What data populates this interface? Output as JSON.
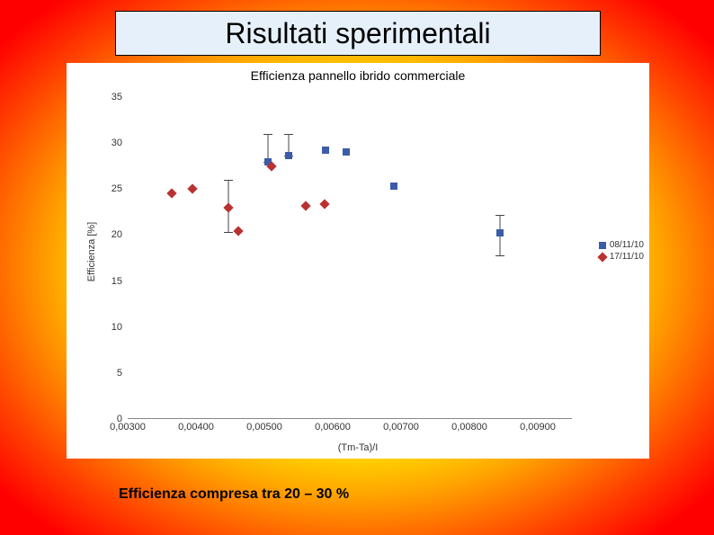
{
  "slide": {
    "title": "Risultati sperimentali",
    "caption": "Efficienza compresa tra 20 – 30 %"
  },
  "chart": {
    "type": "scatter",
    "title": "Efficienza pannello ibrido commerciale",
    "xlabel": "(Tm-Ta)/I",
    "ylabel": "Efficienza [%]",
    "background_color": "#ffffff",
    "grid_color": "#e0e0e0",
    "x_ticks": [
      "0,00300",
      "0,00400",
      "0,00500",
      "0,00600",
      "0,00700",
      "0,00800",
      "0,00900"
    ],
    "x_tick_values": [
      0.003,
      0.004,
      0.005,
      0.006,
      0.007,
      0.008,
      0.009
    ],
    "xlim": [
      0.003,
      0.0095
    ],
    "y_ticks": [
      "0",
      "5",
      "10",
      "15",
      "20",
      "25",
      "30",
      "35"
    ],
    "y_tick_values": [
      0,
      5,
      10,
      15,
      20,
      25,
      30,
      35
    ],
    "ylim": [
      0,
      35
    ],
    "title_fontsize": 14,
    "label_fontsize": 11,
    "tick_fontsize": 11,
    "legend": {
      "position": "right-middle",
      "entries": [
        {
          "label": "08/11/10",
          "marker": "square",
          "color": "#3b5ca8"
        },
        {
          "label": "17/11/10",
          "marker": "diamond",
          "color": "#b83232"
        }
      ]
    },
    "series": [
      {
        "name": "08/11/10",
        "marker": "square",
        "color": "#3b5ca8",
        "marker_size": 8,
        "points": [
          {
            "x": 0.00505,
            "y": 28.0,
            "err_top": 31.0,
            "err_bot": 28.0
          },
          {
            "x": 0.00535,
            "y": 28.6,
            "err_top": 31.0,
            "err_bot": 28.6
          },
          {
            "x": 0.0059,
            "y": 29.2
          },
          {
            "x": 0.0062,
            "y": 29.0
          },
          {
            "x": 0.0069,
            "y": 25.3
          },
          {
            "x": 0.00845,
            "y": 20.2,
            "err_top": 22.2,
            "err_bot": 17.8
          }
        ]
      },
      {
        "name": "17/11/10",
        "marker": "diamond",
        "color": "#b83232",
        "marker_size": 8,
        "points": [
          {
            "x": 0.00365,
            "y": 24.5
          },
          {
            "x": 0.00395,
            "y": 25.0
          },
          {
            "x": 0.00448,
            "y": 23.0,
            "err_top": 26.0,
            "err_bot": 20.3
          },
          {
            "x": 0.00462,
            "y": 20.4
          },
          {
            "x": 0.0051,
            "y": 27.5
          },
          {
            "x": 0.0056,
            "y": 23.2
          },
          {
            "x": 0.00588,
            "y": 23.4
          }
        ]
      }
    ]
  },
  "colors": {
    "title_box_bg": "#e6f0fa",
    "title_box_border": "#000000",
    "slide_bg_inner": "#ffff00",
    "slide_bg_mid": "#ffa500",
    "slide_bg_outer": "#ff0000"
  }
}
